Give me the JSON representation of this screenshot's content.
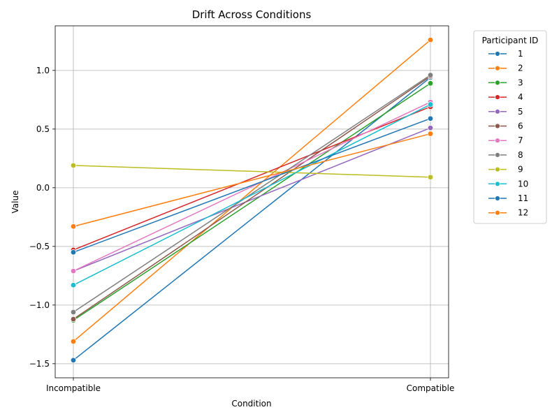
{
  "chart_data": {
    "type": "line",
    "title": "Drift Across Conditions",
    "xlabel": "Condition",
    "ylabel": "Value",
    "categories": [
      "Incompatible",
      "Compatible"
    ],
    "ylim": [
      -1.62,
      1.38
    ],
    "yticks": [
      -1.5,
      -1.0,
      -0.5,
      0.0,
      0.5,
      1.0
    ],
    "ytick_labels": [
      "−1.5",
      "−1.0",
      "−0.5",
      "0.0",
      "0.5",
      "1.0"
    ],
    "grid": true,
    "legend": {
      "title": "Participant ID",
      "placement": "outside-top-right"
    },
    "series": [
      {
        "name": "1",
        "color": "#1f77b4",
        "values": [
          -1.47,
          0.94
        ]
      },
      {
        "name": "2",
        "color": "#ff7f0e",
        "values": [
          -1.31,
          1.26
        ]
      },
      {
        "name": "3",
        "color": "#2ca02c",
        "values": [
          -1.13,
          0.89
        ]
      },
      {
        "name": "4",
        "color": "#d62728",
        "values": [
          -0.53,
          0.69
        ]
      },
      {
        "name": "5",
        "color": "#9467bd",
        "values": [
          -0.71,
          0.51
        ]
      },
      {
        "name": "6",
        "color": "#8c564b",
        "values": [
          -1.12,
          0.95
        ]
      },
      {
        "name": "7",
        "color": "#e377c2",
        "values": [
          -0.71,
          0.73
        ]
      },
      {
        "name": "8",
        "color": "#7f7f7f",
        "values": [
          -1.06,
          0.96
        ]
      },
      {
        "name": "9",
        "color": "#bcbd22",
        "values": [
          0.19,
          0.09
        ]
      },
      {
        "name": "10",
        "color": "#17becf",
        "values": [
          -0.83,
          0.71
        ]
      },
      {
        "name": "11",
        "color": "#1f77b4",
        "values": [
          -0.55,
          0.59
        ]
      },
      {
        "name": "12",
        "color": "#ff7f0e",
        "values": [
          -0.33,
          0.46
        ]
      }
    ]
  }
}
